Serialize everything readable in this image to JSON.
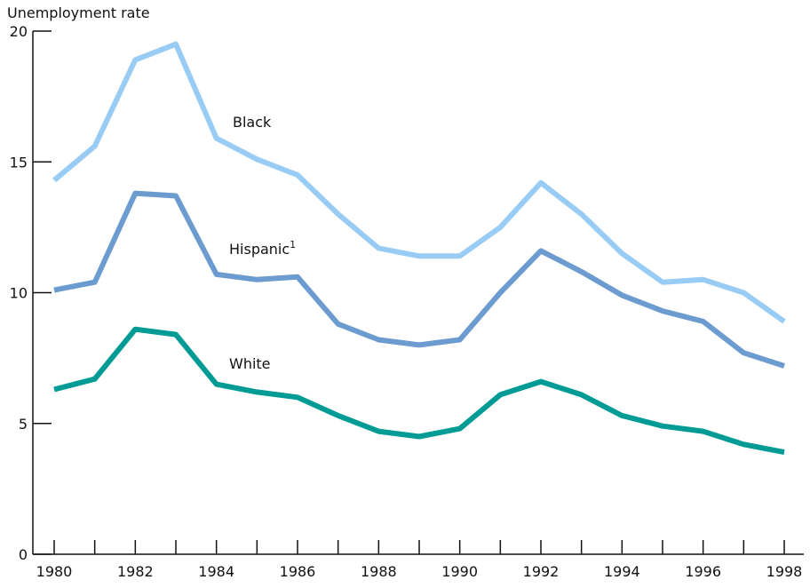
{
  "chart_data": {
    "type": "line",
    "title": "",
    "ylabel": "Unemployment rate",
    "xlabel": "",
    "x": [
      1980,
      1981,
      1982,
      1983,
      1984,
      1985,
      1986,
      1987,
      1988,
      1989,
      1990,
      1991,
      1992,
      1993,
      1994,
      1995,
      1996,
      1997,
      1998
    ],
    "xticks": [
      "1980",
      "1982",
      "1984",
      "1986",
      "1988",
      "1990",
      "1992",
      "1994",
      "1996",
      "1998"
    ],
    "yticks": [
      "0",
      "5",
      "10",
      "15",
      "20"
    ],
    "ylim": [
      0,
      20
    ],
    "xlim": [
      1980,
      1998
    ],
    "grid": false,
    "legend": "inline labels",
    "series": [
      {
        "name": "Black",
        "label_superscript": "",
        "color": "#99ccf5",
        "values": [
          14.3,
          15.6,
          18.9,
          19.5,
          15.9,
          15.1,
          14.5,
          13.0,
          11.7,
          11.4,
          11.4,
          12.5,
          14.2,
          13.0,
          11.5,
          10.4,
          10.5,
          10.0,
          8.9
        ]
      },
      {
        "name": "Hispanic",
        "label_superscript": "1",
        "color": "#6b9bcf",
        "values": [
          10.1,
          10.4,
          13.8,
          13.7,
          10.7,
          10.5,
          10.6,
          8.8,
          8.2,
          8.0,
          8.2,
          10.0,
          11.6,
          10.8,
          9.9,
          9.3,
          8.9,
          7.7,
          7.2
        ]
      },
      {
        "name": "White",
        "label_superscript": "",
        "color": "#009b95",
        "values": [
          6.3,
          6.7,
          8.6,
          8.4,
          6.5,
          6.2,
          6.0,
          5.3,
          4.7,
          4.5,
          4.8,
          6.1,
          6.6,
          6.1,
          5.3,
          4.9,
          4.7,
          4.2,
          3.9
        ]
      }
    ]
  }
}
